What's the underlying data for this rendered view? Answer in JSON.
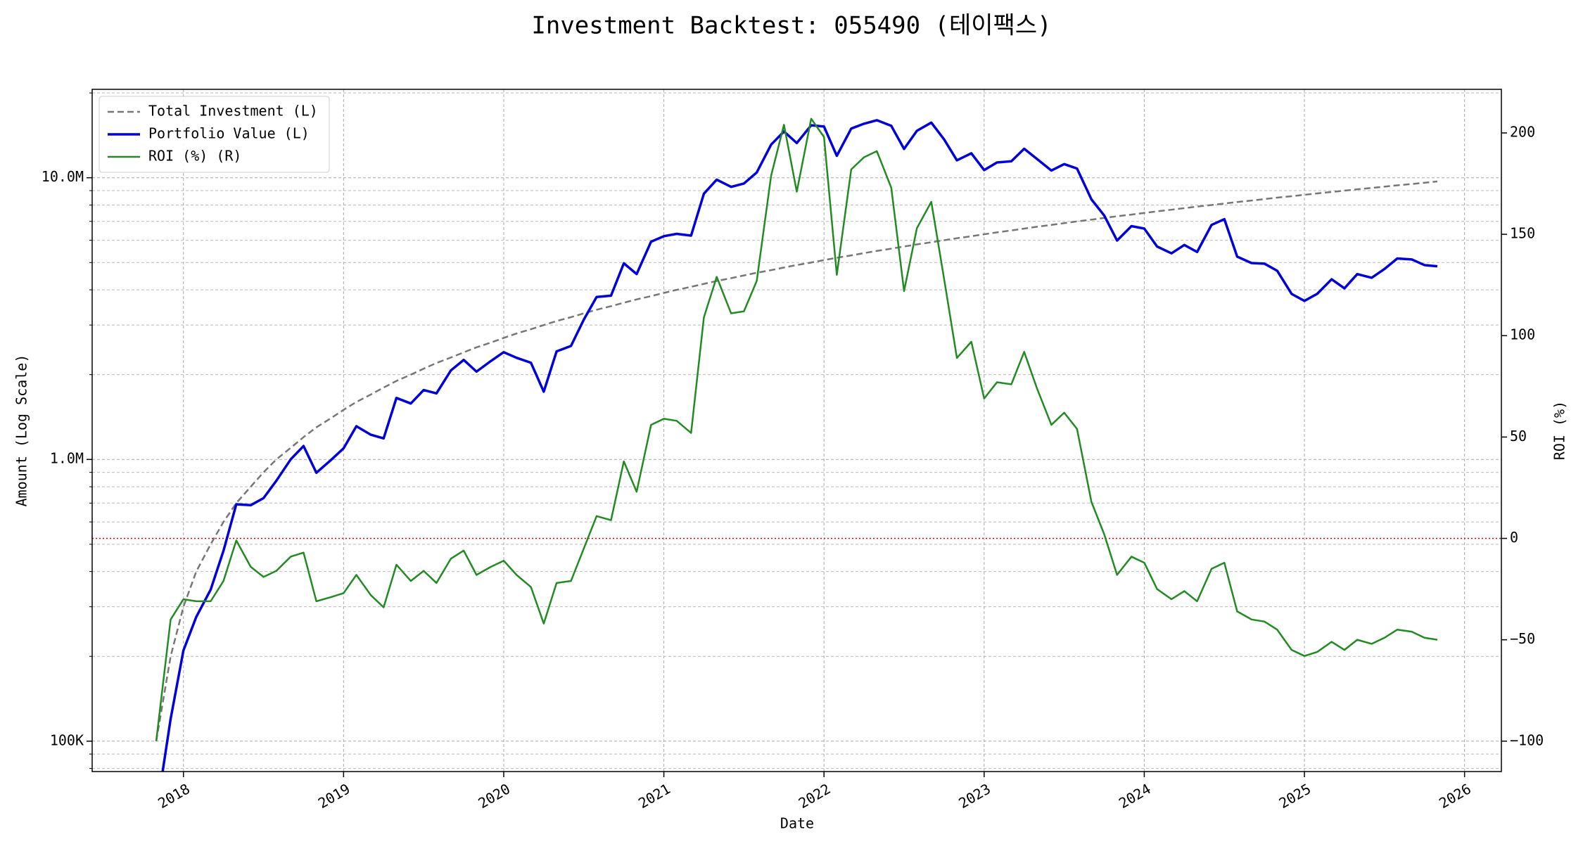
{
  "chart_data": {
    "type": "line",
    "title": "Investment Backtest: 055490 (테이팩스)",
    "xlabel": "Date",
    "ylabel": "Amount (Log Scale)",
    "y2label": "ROI (%)",
    "ylabel_color": "#0000dd",
    "y2label_color": "#228b22",
    "log_y": true,
    "grid": true,
    "legend": "upper-left",
    "x": [
      2017.83,
      2017.92,
      2018.0,
      2018.08,
      2018.17,
      2018.25,
      2018.33,
      2018.42,
      2018.5,
      2018.58,
      2018.67,
      2018.75,
      2018.83,
      2018.92,
      2019.0,
      2019.08,
      2019.17,
      2019.25,
      2019.33,
      2019.42,
      2019.5,
      2019.58,
      2019.67,
      2019.75,
      2019.83,
      2019.92,
      2020.0,
      2020.08,
      2020.17,
      2020.25,
      2020.33,
      2020.42,
      2020.5,
      2020.58,
      2020.67,
      2020.75,
      2020.83,
      2020.92,
      2021.0,
      2021.08,
      2021.17,
      2021.25,
      2021.33,
      2021.42,
      2021.5,
      2021.58,
      2021.67,
      2021.75,
      2021.83,
      2021.92,
      2022.0,
      2022.08,
      2022.17,
      2022.25,
      2022.33,
      2022.42,
      2022.5,
      2022.58,
      2022.67,
      2022.75,
      2022.83,
      2022.92,
      2023.0,
      2023.08,
      2023.17,
      2023.25,
      2023.33,
      2023.42,
      2023.5,
      2023.58,
      2023.67,
      2023.75,
      2023.83,
      2023.92,
      2024.0,
      2024.08,
      2024.17,
      2024.25,
      2024.33,
      2024.42,
      2024.5,
      2024.58,
      2024.67,
      2024.75,
      2024.83,
      2024.92,
      2025.0,
      2025.08,
      2025.17,
      2025.25,
      2025.33,
      2025.42,
      2025.5,
      2025.58,
      2025.67,
      2025.75,
      2025.83
    ],
    "series": [
      {
        "name": "Total Investment (L)",
        "color": "#777777",
        "dash": true,
        "axis": "y",
        "values": [
          100000,
          200000,
          300000,
          400000,
          500000,
          600000,
          700000,
          800000,
          900000,
          1000000,
          1100000,
          1200000,
          1300000,
          1400000,
          1500000,
          1600000,
          1700000,
          1800000,
          1900000,
          2000000,
          2100000,
          2200000,
          2300000,
          2400000,
          2500000,
          2600000,
          2700000,
          2800000,
          2900000,
          3000000,
          3100000,
          3200000,
          3300000,
          3400000,
          3500000,
          3600000,
          3700000,
          3800000,
          3900000,
          4000000,
          4100000,
          4200000,
          4300000,
          4400000,
          4500000,
          4600000,
          4700000,
          4800000,
          4900000,
          5000000,
          5100000,
          5200000,
          5300000,
          5400000,
          5500000,
          5600000,
          5700000,
          5800000,
          5900000,
          6000000,
          6100000,
          6200000,
          6300000,
          6400000,
          6500000,
          6600000,
          6700000,
          6800000,
          6900000,
          7000000,
          7100000,
          7200000,
          7300000,
          7400000,
          7500000,
          7600000,
          7700000,
          7800000,
          7900000,
          8000000,
          8100000,
          8200000,
          8300000,
          8400000,
          8500000,
          8600000,
          8700000,
          8800000,
          8900000,
          9000000,
          9100000,
          9200000,
          9300000,
          9400000,
          9500000,
          9600000,
          9700000
        ]
      },
      {
        "name": "Portfolio Value (L)",
        "color": "#0000dd",
        "dash": false,
        "axis": "y",
        "values": [
          0,
          120000,
          210000,
          276000,
          345000,
          474000,
          693000,
          688000,
          729000,
          840000,
          1001000,
          1116000,
          897000,
          994000,
          1095000,
          1312000,
          1224000,
          1188000,
          1653000,
          1580000,
          1764000,
          1716000,
          2070000,
          2256000,
          2050000,
          2236000,
          2403000,
          2296000,
          2204000,
          1740000,
          2418000,
          2528000,
          3135000,
          3774000,
          3815000,
          4968000,
          4551000,
          5928000,
          6201000,
          6320000,
          6232000,
          8778000,
          9847000,
          9284000,
          9540000,
          10442000,
          13113000,
          14592000,
          13279000,
          15350000,
          15198000,
          11960000,
          14946000,
          15552000,
          16005000,
          15288000,
          12654000,
          14674000,
          15694000,
          13680000,
          11529000,
          12214000,
          10647000,
          11328000,
          11440000,
          12672000,
          11658000,
          10608000,
          11178000,
          10780000,
          8378000,
          7344000,
          5986000,
          6734000,
          6600000,
          5700000,
          5390000,
          5772000,
          5451000,
          6800000,
          7128000,
          5248000,
          4980000,
          4956000,
          4675000,
          3870000,
          3654000,
          3872000,
          4361000,
          4050000,
          4550000,
          4416000,
          4743000,
          5170000,
          5130000,
          4896000,
          4850000
        ]
      },
      {
        "name": "ROI (%) (R)",
        "color": "#228b22",
        "dash": false,
        "axis": "y2",
        "values": [
          -100,
          -40,
          -30,
          -31,
          -31,
          -21,
          -1,
          -14,
          -19,
          -16,
          -9,
          -7,
          -31,
          -29,
          -27,
          -18,
          -28,
          -34,
          -13,
          -21,
          -16,
          -22,
          -10,
          -6,
          -18,
          -14,
          -11,
          -18,
          -24,
          -42,
          -22,
          -21,
          -5,
          11,
          9,
          38,
          23,
          56,
          59,
          58,
          52,
          109,
          129,
          111,
          112,
          127,
          179,
          204,
          171,
          207,
          198,
          130,
          182,
          188,
          191,
          173,
          122,
          153,
          166,
          128,
          89,
          97,
          69,
          77,
          76,
          92,
          74,
          56,
          62,
          54,
          18,
          2,
          -18,
          -9,
          -12,
          -25,
          -30,
          -26,
          -31,
          -15,
          -12,
          -36,
          -40,
          -41,
          -45,
          -55,
          -58,
          -56,
          -51,
          -55,
          -50,
          -52,
          -49,
          -45,
          -46,
          -49,
          -50
        ]
      }
    ],
    "hlines": [
      {
        "value": 0,
        "axis": "y2",
        "color": "#dd0000"
      }
    ],
    "xlim": [
      2017.43,
      2026.23
    ],
    "xticks": [
      2018,
      2019,
      2020,
      2021,
      2022,
      2023,
      2024,
      2025,
      2026
    ],
    "ylim": [
      78000,
      20600000
    ],
    "yticks": [
      {
        "value": 100000,
        "label": "100K"
      },
      {
        "value": 1000000,
        "label": "1.0M"
      },
      {
        "value": 10000000,
        "label": "10.0M"
      }
    ],
    "yminorticks": [
      80000,
      90000,
      200000,
      300000,
      400000,
      500000,
      600000,
      700000,
      800000,
      900000,
      2000000,
      3000000,
      4000000,
      5000000,
      6000000,
      7000000,
      8000000,
      9000000,
      20000000
    ],
    "y2lim": [
      -115,
      221.5
    ],
    "y2ticks": [
      {
        "value": -100,
        "label": "−100"
      },
      {
        "value": -50,
        "label": "−50"
      },
      0,
      50,
      100,
      150,
      200
    ]
  }
}
